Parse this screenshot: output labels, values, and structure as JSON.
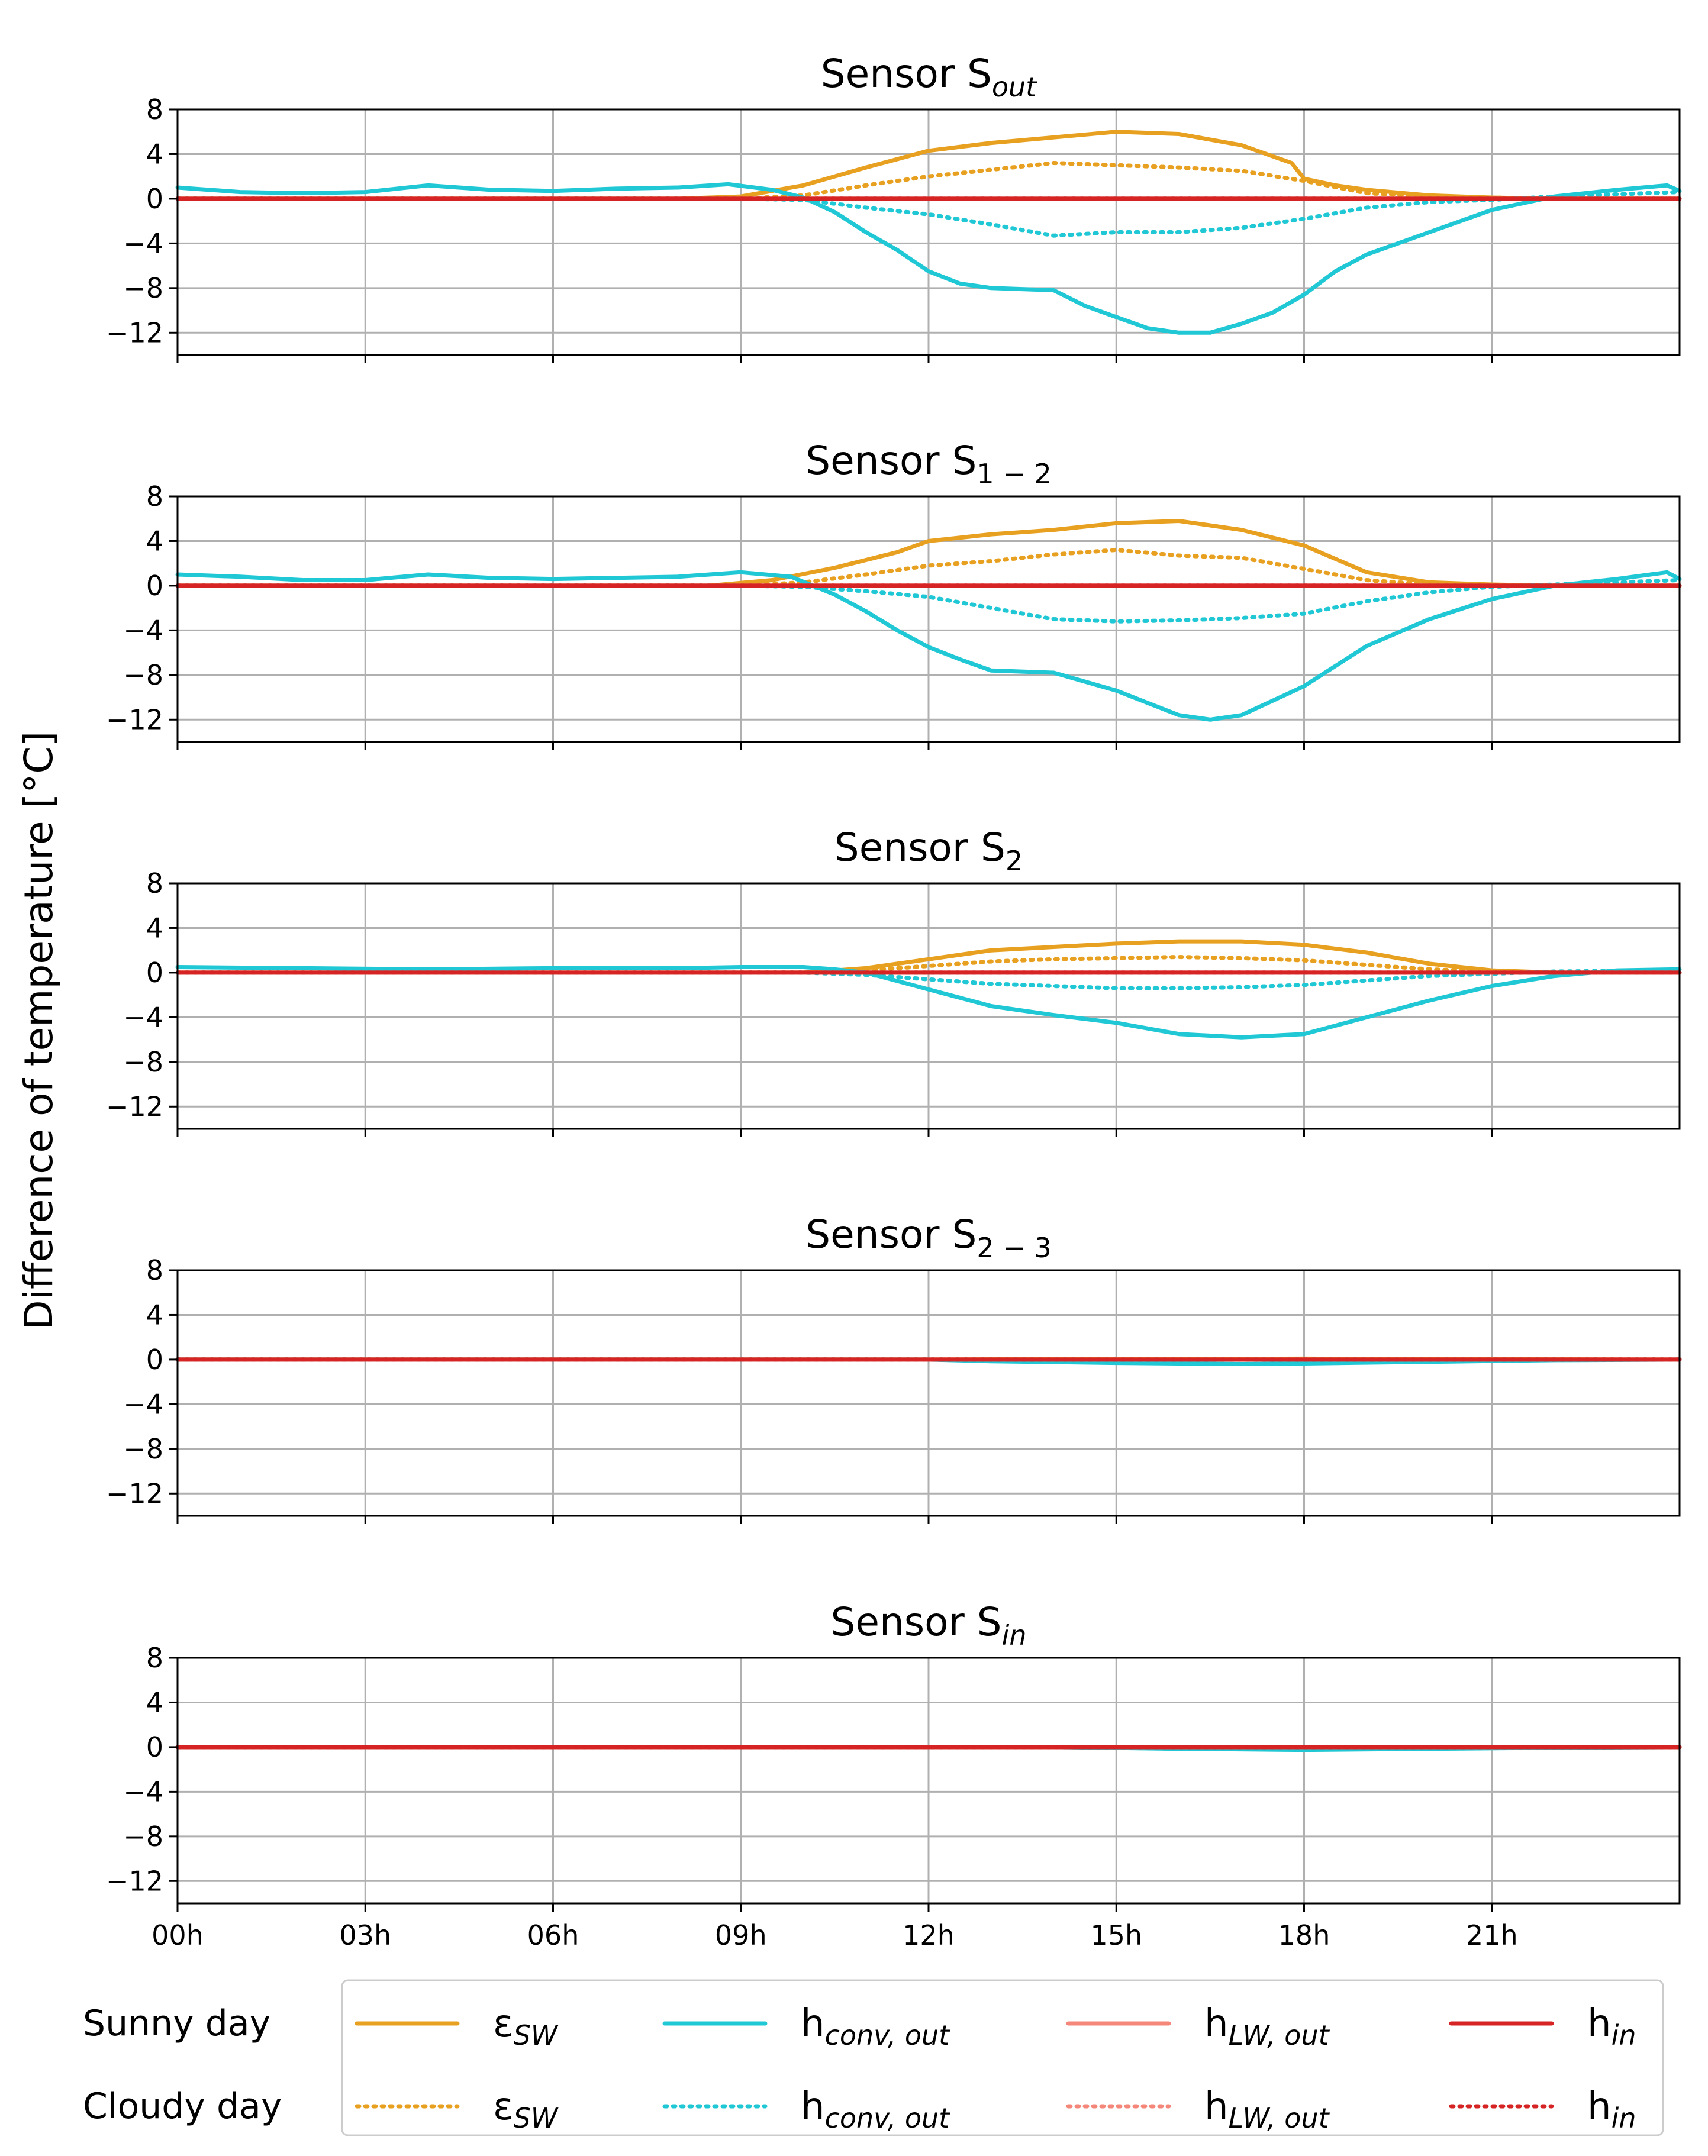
{
  "chart_data": {
    "type": "line",
    "ylabel": "Difference of temperature [°C]",
    "xlim": [
      0,
      24
    ],
    "ylim": [
      -14,
      8
    ],
    "y_ticks": [
      8,
      4,
      0,
      -4,
      -8,
      -12
    ],
    "y_tick_labels": [
      "8",
      "4",
      "0",
      "−4",
      "−8",
      "−12"
    ],
    "x_tick_values": [
      0,
      3,
      6,
      9,
      12,
      15,
      18,
      21
    ],
    "x_tick_labels": [
      "00h",
      "03h",
      "06h",
      "09h",
      "12h",
      "15h",
      "18h",
      "21h"
    ],
    "grid": true,
    "legend": {
      "rows": [
        "Sunny day",
        "Cloudy day"
      ],
      "entries": [
        {
          "key": "eps",
          "base": "ε",
          "sub": "SW"
        },
        {
          "key": "hconv",
          "base": "h",
          "sub": "conv, out"
        },
        {
          "key": "hlw",
          "base": "h",
          "sub": "LW, out"
        },
        {
          "key": "hin",
          "base": "h",
          "sub": "in"
        }
      ]
    },
    "series_style": {
      "eps": {
        "color": "#e8a020"
      },
      "hconv": {
        "color": "#1fc8d4"
      },
      "hlw": {
        "color": "#f4877a"
      },
      "hin": {
        "color": "#d62323"
      }
    },
    "panels": [
      {
        "title_base": "Sensor S",
        "title_sub": "out",
        "series": [
          {
            "key": "eps",
            "day": "sunny",
            "x": [
              0,
              8,
              9,
              10,
              11,
              12,
              13,
              14,
              15,
              16,
              17,
              17.8,
              18,
              18.5,
              19,
              20,
              21,
              22,
              23,
              24
            ],
            "y": [
              0,
              0,
              0.2,
              1.2,
              2.8,
              4.3,
              5,
              5.5,
              6,
              5.8,
              4.8,
              3.2,
              1.8,
              1.2,
              0.8,
              0.3,
              0.1,
              0,
              0,
              0
            ]
          },
          {
            "key": "eps",
            "day": "cloudy",
            "x": [
              0,
              9,
              10,
              11,
              12,
              13,
              14,
              15,
              16,
              17,
              18,
              19,
              20,
              21,
              22,
              23,
              24
            ],
            "y": [
              0,
              0,
              0.3,
              1.2,
              2,
              2.6,
              3.2,
              3,
              2.8,
              2.5,
              1.6,
              0.5,
              0.2,
              0.1,
              0,
              0,
              0
            ]
          },
          {
            "key": "hconv",
            "day": "sunny",
            "x": [
              0,
              1,
              2,
              3,
              4,
              5,
              6,
              7,
              8,
              8.8,
              9.5,
              10,
              10.5,
              11,
              11.5,
              12,
              12.5,
              13,
              14,
              14.5,
              15,
              15.5,
              16,
              16.5,
              17,
              17.5,
              18,
              18.5,
              19,
              20,
              21,
              22,
              23,
              23.8,
              24
            ],
            "y": [
              1,
              0.6,
              0.5,
              0.6,
              1.2,
              0.8,
              0.7,
              0.9,
              1,
              1.3,
              0.8,
              0.1,
              -1.2,
              -3,
              -4.6,
              -6.5,
              -7.6,
              -8,
              -8.2,
              -9.6,
              -10.6,
              -11.6,
              -12,
              -12,
              -11.2,
              -10.2,
              -8.6,
              -6.5,
              -5,
              -3,
              -1,
              0.2,
              0.8,
              1.2,
              0.7
            ]
          },
          {
            "key": "hconv",
            "day": "cloudy",
            "x": [
              0,
              9,
              10,
              11,
              12,
              13,
              14,
              15,
              16,
              17,
              18,
              19,
              20,
              21,
              22,
              23,
              24
            ],
            "y": [
              0,
              0,
              -0.1,
              -0.8,
              -1.4,
              -2.3,
              -3.3,
              -3,
              -3,
              -2.6,
              -1.8,
              -0.8,
              -0.3,
              -0.1,
              0.2,
              0.4,
              0.6
            ]
          },
          {
            "key": "hlw",
            "day": "sunny",
            "x": [
              0,
              24
            ],
            "y": [
              0,
              0
            ]
          },
          {
            "key": "hlw",
            "day": "cloudy",
            "x": [
              0,
              24
            ],
            "y": [
              0,
              0
            ]
          },
          {
            "key": "hin",
            "day": "sunny",
            "x": [
              0,
              24
            ],
            "y": [
              0,
              0
            ]
          },
          {
            "key": "hin",
            "day": "cloudy",
            "x": [
              0,
              24
            ],
            "y": [
              0,
              0
            ]
          }
        ]
      },
      {
        "title_base": "Sensor S",
        "title_sub": "1 − 2",
        "series": [
          {
            "key": "eps",
            "day": "sunny",
            "x": [
              0,
              8.5,
              9.5,
              10.5,
              11.5,
              12,
              13,
              14,
              15,
              16,
              17,
              18,
              19,
              20,
              21,
              22,
              24
            ],
            "y": [
              0,
              0,
              0.5,
              1.6,
              3,
              4,
              4.6,
              5,
              5.6,
              5.8,
              5,
              3.6,
              1.2,
              0.3,
              0.1,
              0,
              0
            ]
          },
          {
            "key": "eps",
            "day": "cloudy",
            "x": [
              0,
              9,
              10,
              11,
              12,
              13,
              14,
              15,
              16,
              17,
              18,
              19,
              20,
              21,
              24
            ],
            "y": [
              0,
              0,
              0.3,
              1,
              1.8,
              2.2,
              2.8,
              3.2,
              2.7,
              2.5,
              1.5,
              0.5,
              0.1,
              0,
              0
            ]
          },
          {
            "key": "hconv",
            "day": "sunny",
            "x": [
              0,
              1,
              2,
              3,
              4,
              5,
              6,
              7,
              8,
              9,
              9.8,
              10.5,
              11,
              11.5,
              12,
              12.5,
              13,
              14,
              15,
              15.5,
              16,
              16.5,
              17,
              18,
              19,
              20,
              21,
              22,
              23,
              23.8,
              24
            ],
            "y": [
              1,
              0.8,
              0.5,
              0.5,
              1,
              0.7,
              0.6,
              0.7,
              0.8,
              1.2,
              0.8,
              -0.8,
              -2.3,
              -4,
              -5.5,
              -6.6,
              -7.6,
              -7.8,
              -9.4,
              -10.5,
              -11.6,
              -12,
              -11.6,
              -9,
              -5.4,
              -3,
              -1.2,
              0,
              0.6,
              1.2,
              0.6
            ]
          },
          {
            "key": "hconv",
            "day": "cloudy",
            "x": [
              0,
              9,
              10,
              11,
              12,
              13,
              14,
              15,
              16,
              17,
              18,
              19,
              20,
              21,
              22,
              23,
              24
            ],
            "y": [
              0,
              0,
              -0.1,
              -0.5,
              -1,
              -2,
              -3,
              -3.2,
              -3.1,
              -2.9,
              -2.5,
              -1.4,
              -0.6,
              -0.1,
              0.1,
              0.3,
              0.5
            ]
          },
          {
            "key": "hlw",
            "day": "sunny",
            "x": [
              0,
              24
            ],
            "y": [
              0,
              0
            ]
          },
          {
            "key": "hlw",
            "day": "cloudy",
            "x": [
              0,
              24
            ],
            "y": [
              0,
              0
            ]
          },
          {
            "key": "hin",
            "day": "sunny",
            "x": [
              0,
              24
            ],
            "y": [
              0,
              0
            ]
          },
          {
            "key": "hin",
            "day": "cloudy",
            "x": [
              0,
              24
            ],
            "y": [
              0,
              0
            ]
          }
        ]
      },
      {
        "title_base": "Sensor S",
        "title_sub": "2",
        "series": [
          {
            "key": "eps",
            "day": "sunny",
            "x": [
              0,
              10,
              11,
              12,
              13,
              14,
              15,
              16,
              17,
              18,
              19,
              20,
              21,
              22,
              24
            ],
            "y": [
              0,
              0,
              0.4,
              1.2,
              2,
              2.3,
              2.6,
              2.8,
              2.8,
              2.5,
              1.8,
              0.8,
              0.2,
              0,
              0
            ]
          },
          {
            "key": "eps",
            "day": "cloudy",
            "x": [
              0,
              10,
              11,
              12,
              13,
              14,
              15,
              16,
              17,
              18,
              19,
              20,
              21,
              22,
              24
            ],
            "y": [
              0,
              0,
              0.2,
              0.6,
              1,
              1.2,
              1.3,
              1.4,
              1.3,
              1.1,
              0.7,
              0.3,
              0.1,
              0,
              0
            ]
          },
          {
            "key": "hconv",
            "day": "sunny",
            "x": [
              0,
              2,
              4,
              6,
              8,
              9,
              10,
              10.5,
              11,
              12,
              13,
              14,
              15,
              16,
              17,
              18,
              19,
              20,
              21,
              22,
              23,
              24
            ],
            "y": [
              0.5,
              0.4,
              0.3,
              0.4,
              0.4,
              0.5,
              0.5,
              0.3,
              0,
              -1.5,
              -3,
              -3.8,
              -4.5,
              -5.5,
              -5.8,
              -5.5,
              -4,
              -2.5,
              -1.2,
              -0.3,
              0.2,
              0.3
            ]
          },
          {
            "key": "hconv",
            "day": "cloudy",
            "x": [
              0,
              10,
              11,
              12,
              13,
              14,
              15,
              16,
              17,
              18,
              19,
              20,
              21,
              22,
              24
            ],
            "y": [
              0,
              0,
              -0.2,
              -0.6,
              -1,
              -1.2,
              -1.4,
              -1.4,
              -1.3,
              -1.1,
              -0.7,
              -0.3,
              -0.1,
              0.1,
              0.2
            ]
          },
          {
            "key": "hlw",
            "day": "sunny",
            "x": [
              0,
              24
            ],
            "y": [
              0,
              0
            ]
          },
          {
            "key": "hlw",
            "day": "cloudy",
            "x": [
              0,
              24
            ],
            "y": [
              0,
              0
            ]
          },
          {
            "key": "hin",
            "day": "sunny",
            "x": [
              0,
              24
            ],
            "y": [
              0,
              0
            ]
          },
          {
            "key": "hin",
            "day": "cloudy",
            "x": [
              0,
              24
            ],
            "y": [
              0,
              0
            ]
          }
        ]
      },
      {
        "title_base": "Sensor S",
        "title_sub": "2 − 3",
        "series": [
          {
            "key": "eps",
            "day": "sunny",
            "x": [
              0,
              12,
              15,
              18,
              21,
              24
            ],
            "y": [
              0,
              0,
              0.05,
              0.08,
              0.02,
              0
            ]
          },
          {
            "key": "eps",
            "day": "cloudy",
            "x": [
              0,
              24
            ],
            "y": [
              0,
              0
            ]
          },
          {
            "key": "hconv",
            "day": "sunny",
            "x": [
              0,
              12,
              13,
              15,
              17,
              18,
              20,
              22,
              24
            ],
            "y": [
              0,
              0,
              -0.15,
              -0.3,
              -0.4,
              -0.35,
              -0.2,
              -0.05,
              0
            ]
          },
          {
            "key": "hconv",
            "day": "cloudy",
            "x": [
              0,
              24
            ],
            "y": [
              0,
              0
            ]
          },
          {
            "key": "hlw",
            "day": "sunny",
            "x": [
              0,
              24
            ],
            "y": [
              0,
              0
            ]
          },
          {
            "key": "hlw",
            "day": "cloudy",
            "x": [
              0,
              24
            ],
            "y": [
              0,
              0
            ]
          },
          {
            "key": "hin",
            "day": "sunny",
            "x": [
              0,
              24
            ],
            "y": [
              0,
              0
            ]
          },
          {
            "key": "hin",
            "day": "cloudy",
            "x": [
              0,
              24
            ],
            "y": [
              0,
              0
            ]
          }
        ]
      },
      {
        "title_base": "Sensor S",
        "title_sub": "in",
        "series": [
          {
            "key": "eps",
            "day": "sunny",
            "x": [
              0,
              24
            ],
            "y": [
              0,
              0
            ]
          },
          {
            "key": "eps",
            "day": "cloudy",
            "x": [
              0,
              24
            ],
            "y": [
              0,
              0
            ]
          },
          {
            "key": "hconv",
            "day": "sunny",
            "x": [
              0,
              14,
              16,
              18,
              20,
              22,
              24
            ],
            "y": [
              0,
              0,
              -0.15,
              -0.25,
              -0.15,
              -0.05,
              0
            ]
          },
          {
            "key": "hconv",
            "day": "cloudy",
            "x": [
              0,
              24
            ],
            "y": [
              0,
              0
            ]
          },
          {
            "key": "hlw",
            "day": "sunny",
            "x": [
              0,
              24
            ],
            "y": [
              0,
              0
            ]
          },
          {
            "key": "hlw",
            "day": "cloudy",
            "x": [
              0,
              24
            ],
            "y": [
              0,
              0
            ]
          },
          {
            "key": "hin",
            "day": "sunny",
            "x": [
              0,
              24
            ],
            "y": [
              0,
              0
            ]
          },
          {
            "key": "hin",
            "day": "cloudy",
            "x": [
              0,
              24
            ],
            "y": [
              0,
              0
            ]
          }
        ]
      }
    ]
  }
}
